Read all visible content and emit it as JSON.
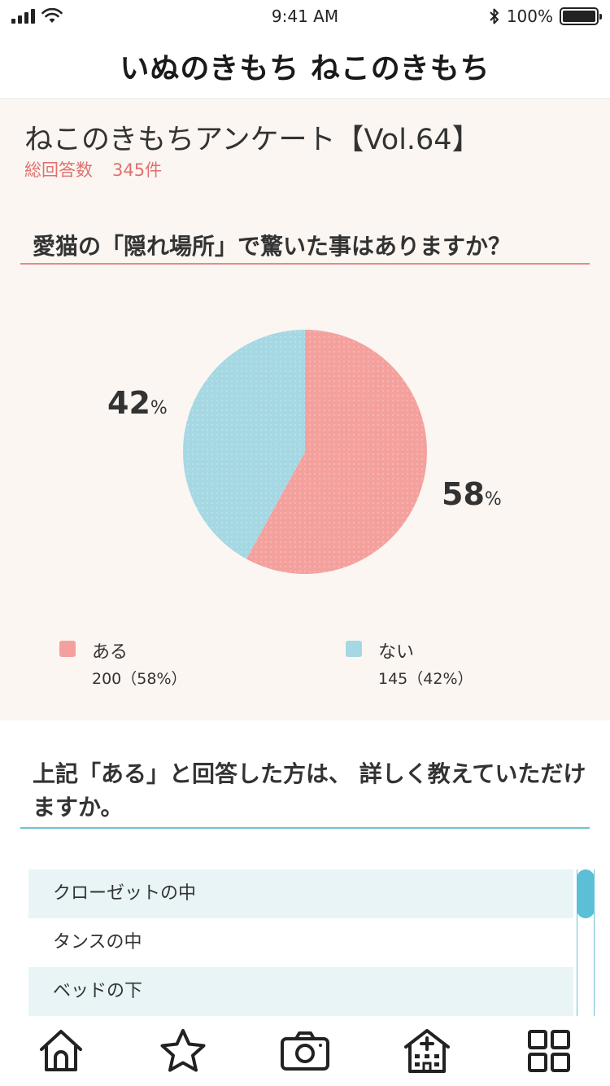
{
  "status_bar": {
    "time": "9:41 AM",
    "battery": "100%",
    "battery_level": 1.0
  },
  "header": {
    "logo_text": "いぬのきもち ねこのきもち"
  },
  "survey": {
    "title": "ねこのきもちアンケート【Vol.64】",
    "total_label": "総回答数",
    "total_value": "345件",
    "question": "愛猫の「隠れ場所」で驚いた事はありますか？"
  },
  "chart_data": {
    "type": "pie",
    "slices": [
      {
        "name": "ある",
        "value": 200,
        "percent": 58,
        "color": "#f4a19e",
        "label_number": "58",
        "label_unit": "%",
        "value_text": "200（58%）"
      },
      {
        "name": "ない",
        "value": 145,
        "percent": 42,
        "color": "#a5d8e3",
        "label_number": "42",
        "label_unit": "%",
        "value_text": "145（42%）"
      }
    ],
    "legend_placement": "bottom"
  },
  "question2": {
    "text": "上記「ある」と回答した方は、 詳しく教えていただけますか。",
    "answers": [
      "クローゼットの中",
      "タンスの中",
      "ベッドの下"
    ]
  },
  "nav": {
    "items": [
      {
        "icon": "home-icon"
      },
      {
        "icon": "star-icon"
      },
      {
        "icon": "camera-icon"
      },
      {
        "icon": "hospital-icon"
      },
      {
        "icon": "grid-icon"
      }
    ]
  },
  "colors": {
    "accent_red": "#e0716e",
    "accent_blue": "#6cc2d3",
    "survey_bg": "#fbf6f2"
  }
}
